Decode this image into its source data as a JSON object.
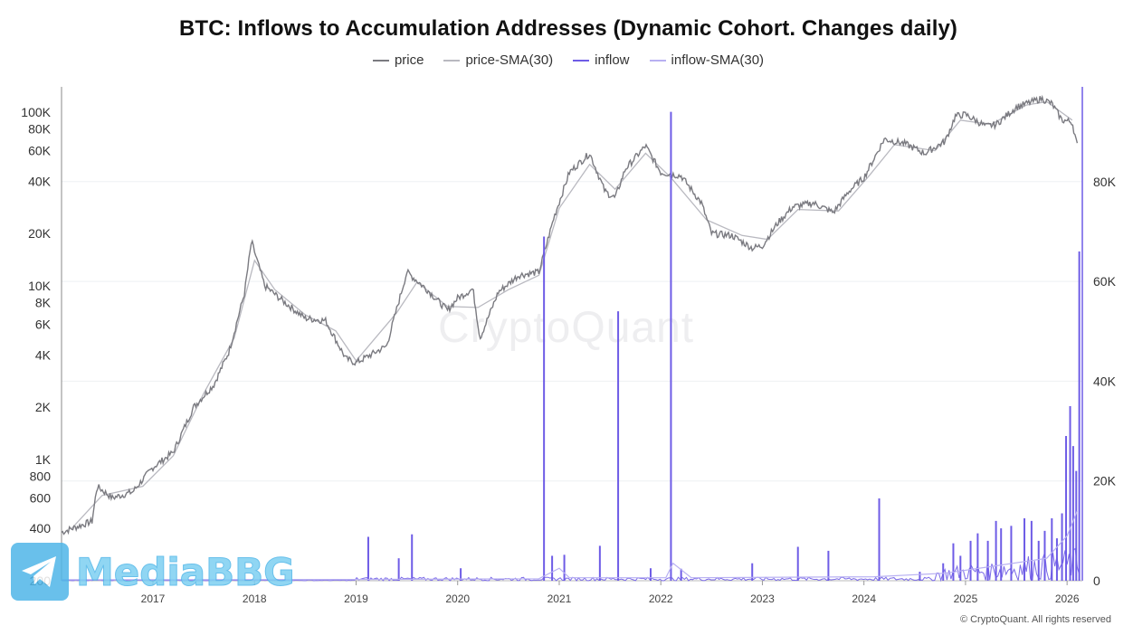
{
  "chart_data": {
    "type": "line",
    "title": "BTC: Inflows to Accumulation Addresses (Dynamic Cohort. Changes daily)",
    "legend": [
      {
        "name": "price",
        "color": "#7a7a80"
      },
      {
        "name": "price-SMA(30)",
        "color": "#b9b9c0"
      },
      {
        "name": "inflow",
        "color": "#6e5ce6"
      },
      {
        "name": "inflow-SMA(30)",
        "color": "#b8b0f2"
      }
    ],
    "legend_position": "top-center",
    "x_ticks": [
      "2017",
      "2018",
      "2019",
      "2020",
      "2021",
      "2022",
      "2023",
      "2024",
      "2025",
      "2026"
    ],
    "x_range": [
      2016.1,
      2026.15
    ],
    "y_left": {
      "scale": "log",
      "range": [
        200,
        140000
      ],
      "ticks": [
        {
          "v": 100000,
          "label": "100K"
        },
        {
          "v": 80000,
          "label": "80K"
        },
        {
          "v": 60000,
          "label": "60K"
        },
        {
          "v": 40000,
          "label": "40K"
        },
        {
          "v": 20000,
          "label": "20K"
        },
        {
          "v": 10000,
          "label": "10K"
        },
        {
          "v": 8000,
          "label": "8K"
        },
        {
          "v": 6000,
          "label": "6K"
        },
        {
          "v": 4000,
          "label": "4K"
        },
        {
          "v": 2000,
          "label": "2K"
        },
        {
          "v": 1000,
          "label": "1K"
        },
        {
          "v": 800,
          "label": "800"
        },
        {
          "v": 600,
          "label": "600"
        },
        {
          "v": 400,
          "label": "400"
        },
        {
          "v": 200,
          "label": "200"
        }
      ]
    },
    "y_right": {
      "scale": "linear",
      "range": [
        0,
        99000
      ],
      "ticks": [
        {
          "v": 80000,
          "label": "80K"
        },
        {
          "v": 60000,
          "label": "60K"
        },
        {
          "v": 40000,
          "label": "40K"
        },
        {
          "v": 20000,
          "label": "20K"
        },
        {
          "v": 0,
          "label": "0"
        }
      ]
    },
    "grid": true,
    "series": [
      {
        "name": "price",
        "axis": "left",
        "points": [
          [
            2016.1,
            380
          ],
          [
            2016.4,
            440
          ],
          [
            2016.45,
            700
          ],
          [
            2016.6,
            600
          ],
          [
            2016.8,
            650
          ],
          [
            2017.0,
            900
          ],
          [
            2017.2,
            1100
          ],
          [
            2017.4,
            2000
          ],
          [
            2017.6,
            2700
          ],
          [
            2017.75,
            4200
          ],
          [
            2017.9,
            9000
          ],
          [
            2017.97,
            18000
          ],
          [
            2018.1,
            10000
          ],
          [
            2018.3,
            8000
          ],
          [
            2018.5,
            6500
          ],
          [
            2018.7,
            6300
          ],
          [
            2018.9,
            3800
          ],
          [
            2019.0,
            3600
          ],
          [
            2019.3,
            4500
          ],
          [
            2019.5,
            12000
          ],
          [
            2019.7,
            9500
          ],
          [
            2019.9,
            7200
          ],
          [
            2020.0,
            8500
          ],
          [
            2020.15,
            9600
          ],
          [
            2020.22,
            5000
          ],
          [
            2020.4,
            9200
          ],
          [
            2020.6,
            11500
          ],
          [
            2020.8,
            12000
          ],
          [
            2020.95,
            25000
          ],
          [
            2021.1,
            45000
          ],
          [
            2021.3,
            58000
          ],
          [
            2021.45,
            35000
          ],
          [
            2021.55,
            32000
          ],
          [
            2021.65,
            47000
          ],
          [
            2021.85,
            64000
          ],
          [
            2022.0,
            45000
          ],
          [
            2022.2,
            43000
          ],
          [
            2022.4,
            30000
          ],
          [
            2022.5,
            20000
          ],
          [
            2022.7,
            19500
          ],
          [
            2022.9,
            16500
          ],
          [
            2023.0,
            17000
          ],
          [
            2023.15,
            23000
          ],
          [
            2023.3,
            28500
          ],
          [
            2023.5,
            30000
          ],
          [
            2023.7,
            26500
          ],
          [
            2023.85,
            35000
          ],
          [
            2024.0,
            42000
          ],
          [
            2024.2,
            70000
          ],
          [
            2024.4,
            66000
          ],
          [
            2024.6,
            58000
          ],
          [
            2024.8,
            68000
          ],
          [
            2024.9,
            95000
          ],
          [
            2025.0,
            97000
          ],
          [
            2025.2,
            83000
          ],
          [
            2025.3,
            85000
          ],
          [
            2025.5,
            107000
          ],
          [
            2025.75,
            120000
          ],
          [
            2025.85,
            112000
          ],
          [
            2025.95,
            90000
          ],
          [
            2026.05,
            88000
          ],
          [
            2026.1,
            64000
          ]
        ]
      },
      {
        "name": "price-SMA(30)",
        "axis": "left",
        "points": [
          [
            2016.2,
            400
          ],
          [
            2016.5,
            620
          ],
          [
            2016.9,
            700
          ],
          [
            2017.2,
            1050
          ],
          [
            2017.5,
            2400
          ],
          [
            2017.8,
            5000
          ],
          [
            2018.0,
            14000
          ],
          [
            2018.2,
            9500
          ],
          [
            2018.5,
            6800
          ],
          [
            2018.8,
            5500
          ],
          [
            2019.0,
            3700
          ],
          [
            2019.4,
            7000
          ],
          [
            2019.6,
            10500
          ],
          [
            2019.9,
            7600
          ],
          [
            2020.2,
            7500
          ],
          [
            2020.5,
            9500
          ],
          [
            2020.8,
            11500
          ],
          [
            2021.0,
            28000
          ],
          [
            2021.3,
            50000
          ],
          [
            2021.55,
            36000
          ],
          [
            2021.85,
            58000
          ],
          [
            2022.1,
            42000
          ],
          [
            2022.45,
            24000
          ],
          [
            2022.8,
            19500
          ],
          [
            2023.05,
            18500
          ],
          [
            2023.35,
            27500
          ],
          [
            2023.75,
            27000
          ],
          [
            2024.05,
            43000
          ],
          [
            2024.3,
            65000
          ],
          [
            2024.7,
            60000
          ],
          [
            2024.95,
            90000
          ],
          [
            2025.25,
            85000
          ],
          [
            2025.6,
            110000
          ],
          [
            2025.8,
            115000
          ],
          [
            2026.05,
            90000
          ]
        ]
      },
      {
        "name": "inflow",
        "axis": "right",
        "spikes": [
          [
            2019.12,
            8800
          ],
          [
            2019.42,
            4500
          ],
          [
            2019.55,
            9300
          ],
          [
            2020.03,
            2500
          ],
          [
            2020.85,
            69000
          ],
          [
            2020.93,
            5000
          ],
          [
            2021.05,
            5200
          ],
          [
            2021.4,
            7000
          ],
          [
            2021.58,
            54000
          ],
          [
            2021.9,
            2500
          ],
          [
            2022.1,
            94000
          ],
          [
            2022.2,
            2400
          ],
          [
            2022.9,
            3500
          ],
          [
            2023.35,
            6800
          ],
          [
            2023.65,
            6000
          ],
          [
            2024.15,
            16500
          ],
          [
            2024.55,
            1800
          ],
          [
            2024.78,
            3500
          ],
          [
            2024.88,
            7500
          ],
          [
            2024.95,
            5000
          ],
          [
            2025.05,
            8000
          ],
          [
            2025.12,
            9500
          ],
          [
            2025.22,
            8000
          ],
          [
            2025.3,
            12000
          ],
          [
            2025.35,
            10500
          ],
          [
            2025.45,
            11000
          ],
          [
            2025.58,
            12500
          ],
          [
            2025.65,
            12000
          ],
          [
            2025.72,
            8000
          ],
          [
            2025.78,
            10000
          ],
          [
            2025.85,
            12500
          ],
          [
            2025.9,
            8500
          ],
          [
            2025.95,
            13500
          ],
          [
            2025.99,
            29000
          ],
          [
            2026.03,
            35000
          ],
          [
            2026.06,
            27000
          ],
          [
            2026.09,
            22000
          ],
          [
            2026.12,
            66000
          ]
        ]
      },
      {
        "name": "inflow-SMA(30)",
        "axis": "right",
        "points": [
          [
            2016.1,
            200
          ],
          [
            2019.0,
            250
          ],
          [
            2020.8,
            400
          ],
          [
            2021.0,
            2500
          ],
          [
            2021.1,
            600
          ],
          [
            2022.05,
            600
          ],
          [
            2022.12,
            3500
          ],
          [
            2022.3,
            600
          ],
          [
            2024.1,
            800
          ],
          [
            2024.8,
            1500
          ],
          [
            2025.3,
            3000
          ],
          [
            2025.8,
            4500
          ],
          [
            2026.0,
            9000
          ],
          [
            2026.1,
            14000
          ]
        ]
      }
    ]
  },
  "watermark": "CryptoQuant",
  "brand_watermark": "MediaBBG",
  "copyright": "© CryptoQuant. All rights reserved"
}
